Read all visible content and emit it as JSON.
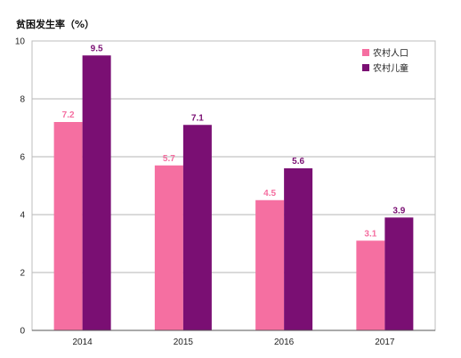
{
  "chart_data": {
    "type": "bar",
    "title": "",
    "ylabel": "贫困发生率（%）",
    "xlabel": "",
    "categories": [
      "2014",
      "2015",
      "2016",
      "2017"
    ],
    "ylim": [
      0,
      10
    ],
    "yticks": [
      "0",
      "2",
      "4",
      "6",
      "8",
      "10"
    ],
    "grid": true,
    "legend_position": "top-right",
    "series": [
      {
        "name": "农村人口",
        "color": "#f56fa1",
        "values": [
          7.2,
          5.7,
          4.5,
          3.1
        ],
        "labels": [
          "7.2",
          "5.7",
          "4.5",
          "3.1"
        ]
      },
      {
        "name": "农村儿童",
        "color": "#7a0f73",
        "values": [
          9.5,
          7.1,
          5.6,
          3.9
        ],
        "labels": [
          "9.5",
          "7.1",
          "5.6",
          "3.9"
        ]
      }
    ]
  }
}
